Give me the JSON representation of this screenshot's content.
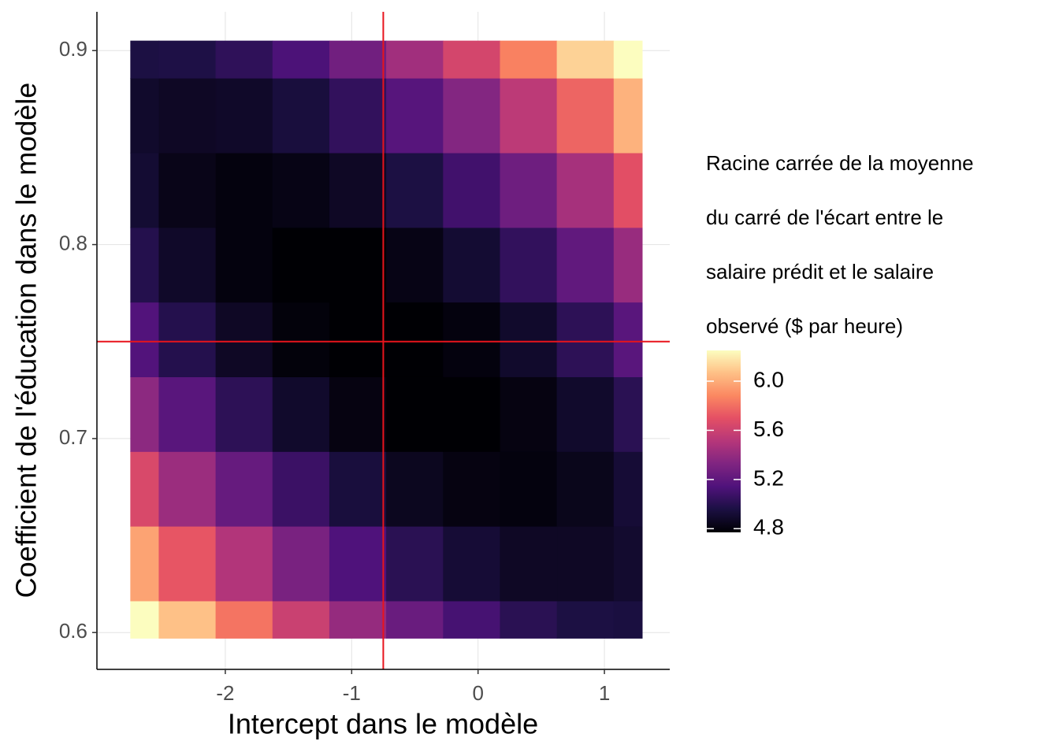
{
  "chart_data": {
    "type": "heatmap",
    "xlabel": "Intercept dans le modèle",
    "ylabel": "Coefficient de l'éducation dans le modèle",
    "x": [
      -2.75,
      -2.3,
      -1.85,
      -1.4,
      -0.95,
      -0.5,
      -0.05,
      0.4,
      0.85,
      1.3
    ],
    "y": [
      0.597,
      0.6355,
      0.674,
      0.7125,
      0.751,
      0.7895,
      0.828,
      0.8665,
      0.905
    ],
    "z": [
      [
        6.34,
        6.07,
        5.82,
        5.59,
        5.4,
        5.24,
        5.11,
        5.01,
        4.96,
        4.95
      ],
      [
        5.97,
        5.72,
        5.5,
        5.3,
        5.14,
        5.01,
        4.92,
        4.87,
        4.87,
        4.9
      ],
      [
        5.65,
        5.42,
        5.23,
        5.07,
        4.94,
        4.85,
        4.81,
        4.8,
        4.84,
        4.92
      ],
      [
        5.37,
        5.18,
        5.02,
        4.89,
        4.81,
        4.77,
        4.77,
        4.81,
        4.89,
        5.01
      ],
      [
        5.15,
        4.99,
        4.87,
        4.79,
        4.75,
        4.76,
        4.8,
        4.89,
        5.02,
        5.18
      ],
      [
        4.99,
        4.88,
        4.8,
        4.77,
        4.77,
        4.82,
        4.91,
        5.04,
        5.21,
        5.41
      ],
      [
        4.91,
        4.83,
        4.8,
        4.82,
        4.87,
        4.96,
        5.09,
        5.26,
        5.46,
        5.69
      ],
      [
        4.89,
        4.87,
        4.88,
        4.94,
        5.04,
        5.17,
        5.34,
        5.54,
        5.77,
        6.02
      ],
      [
        4.96,
        4.97,
        5.03,
        5.13,
        5.27,
        5.44,
        5.63,
        5.86,
        6.12,
        6.39
      ]
    ],
    "xlim": [
      -3.016,
      1.517
    ],
    "ylim": [
      0.581,
      0.92
    ],
    "xticks": [
      -2,
      -1,
      0,
      1
    ],
    "yticks": [
      0.6,
      0.7,
      0.8,
      0.9
    ],
    "grid": true,
    "reference_lines": {
      "x": -0.75,
      "y": 0.75,
      "color": "#e8141c"
    },
    "colorbar": {
      "title": [
        "Racine carrée de la moyenne",
        "du carré de l'écart entre le",
        "salaire prédit et le salaire",
        "observé ($ par heure)"
      ],
      "zlim": [
        4.77,
        6.25
      ],
      "ticks": [
        {
          "value": 6,
          "label": "6.0"
        },
        5.6,
        5.2,
        4.8
      ],
      "colormap": "magma"
    }
  }
}
